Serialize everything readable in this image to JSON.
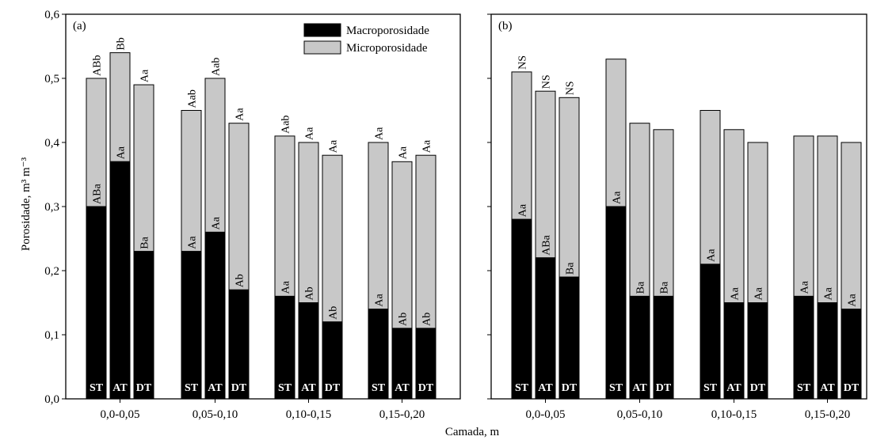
{
  "chart_data": {
    "type": "bar",
    "stacked": true,
    "ylabel": "Porosidade, m³ m⁻³",
    "xlabel": "Camada, m",
    "ylim": [
      0,
      0.6
    ],
    "yticks": [
      "0,0",
      "0,1",
      "0,2",
      "0,3",
      "0,4",
      "0,5",
      "0,6"
    ],
    "grid": false,
    "legend": {
      "placement": "top-right of panel (a)",
      "entries": [
        {
          "name": "Macroporosidade",
          "color": "#000000"
        },
        {
          "name": "Microporosidade",
          "color": "#c8c8c8"
        }
      ]
    },
    "panels": [
      {
        "label": "(a)",
        "groups": [
          {
            "category": "0,0-0,05",
            "bars": [
              {
                "treatment": "ST",
                "macro": 0.3,
                "total": 0.5,
                "macro_label": "ABa",
                "total_label": "ABb"
              },
              {
                "treatment": "AT",
                "macro": 0.37,
                "total": 0.54,
                "macro_label": "Aa",
                "total_label": "Bb"
              },
              {
                "treatment": "DT",
                "macro": 0.23,
                "total": 0.49,
                "macro_label": "Ba",
                "total_label": "Aa"
              }
            ]
          },
          {
            "category": "0,05-0,10",
            "bars": [
              {
                "treatment": "ST",
                "macro": 0.23,
                "total": 0.45,
                "macro_label": "Aa",
                "total_label": "Aab"
              },
              {
                "treatment": "AT",
                "macro": 0.26,
                "total": 0.5,
                "macro_label": "Aa",
                "total_label": "Aab"
              },
              {
                "treatment": "DT",
                "macro": 0.17,
                "total": 0.43,
                "macro_label": "Ab",
                "total_label": "Aa"
              }
            ]
          },
          {
            "category": "0,10-0,15",
            "bars": [
              {
                "treatment": "ST",
                "macro": 0.16,
                "total": 0.41,
                "macro_label": "Aa",
                "total_label": "Aab"
              },
              {
                "treatment": "AT",
                "macro": 0.15,
                "total": 0.4,
                "macro_label": "Ab",
                "total_label": "Aa"
              },
              {
                "treatment": "DT",
                "macro": 0.12,
                "total": 0.38,
                "macro_label": "Ab",
                "total_label": "Aa"
              }
            ]
          },
          {
            "category": "0,15-0,20",
            "bars": [
              {
                "treatment": "ST",
                "macro": 0.14,
                "total": 0.4,
                "macro_label": "Aa",
                "total_label": "Aa"
              },
              {
                "treatment": "AT",
                "macro": 0.11,
                "total": 0.37,
                "macro_label": "Ab",
                "total_label": "Aa"
              },
              {
                "treatment": "DT",
                "macro": 0.11,
                "total": 0.38,
                "macro_label": "Ab",
                "total_label": "Aa"
              }
            ]
          }
        ]
      },
      {
        "label": "(b)",
        "groups": [
          {
            "category": "0,0-0,05",
            "bars": [
              {
                "treatment": "ST",
                "macro": 0.28,
                "total": 0.51,
                "macro_label": "Aa",
                "total_label": "NS"
              },
              {
                "treatment": "AT",
                "macro": 0.22,
                "total": 0.48,
                "macro_label": "ABa",
                "total_label": "NS"
              },
              {
                "treatment": "DT",
                "macro": 0.19,
                "total": 0.47,
                "macro_label": "Ba",
                "total_label": "NS"
              }
            ]
          },
          {
            "category": "0,05-0,10",
            "bars": [
              {
                "treatment": "ST",
                "macro": 0.3,
                "total": 0.53,
                "macro_label": "Aa",
                "total_label": ""
              },
              {
                "treatment": "AT",
                "macro": 0.16,
                "total": 0.43,
                "macro_label": "Ba",
                "total_label": ""
              },
              {
                "treatment": "DT",
                "macro": 0.16,
                "total": 0.42,
                "macro_label": "Ba",
                "total_label": ""
              }
            ]
          },
          {
            "category": "0,10-0,15",
            "bars": [
              {
                "treatment": "ST",
                "macro": 0.21,
                "total": 0.45,
                "macro_label": "Aa",
                "total_label": ""
              },
              {
                "treatment": "AT",
                "macro": 0.15,
                "total": 0.42,
                "macro_label": "Aa",
                "total_label": ""
              },
              {
                "treatment": "DT",
                "macro": 0.15,
                "total": 0.4,
                "macro_label": "Aa",
                "total_label": ""
              }
            ]
          },
          {
            "category": "0,15-0,20",
            "bars": [
              {
                "treatment": "ST",
                "macro": 0.16,
                "total": 0.41,
                "macro_label": "Aa",
                "total_label": ""
              },
              {
                "treatment": "AT",
                "macro": 0.15,
                "total": 0.41,
                "macro_label": "Aa",
                "total_label": ""
              },
              {
                "treatment": "DT",
                "macro": 0.14,
                "total": 0.4,
                "macro_label": "Aa",
                "total_label": ""
              }
            ]
          }
        ]
      }
    ]
  }
}
